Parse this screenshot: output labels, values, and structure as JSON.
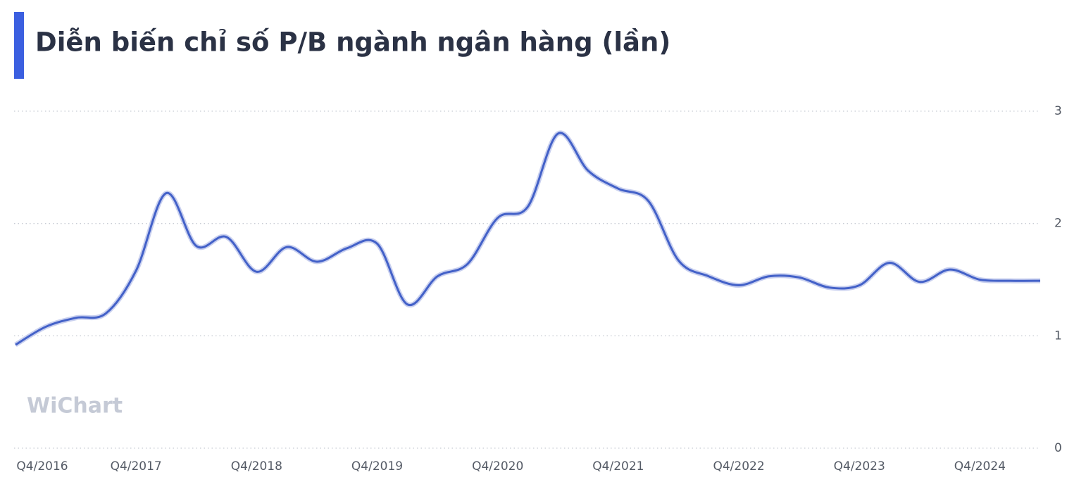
{
  "chart_data": {
    "type": "line",
    "title": "Diễn biến chỉ số P/B ngành ngân hàng (lần)",
    "watermark": "WiChart",
    "categories": [
      "Q4/2016",
      null,
      null,
      null,
      "Q4/2017",
      null,
      null,
      null,
      "Q4/2018",
      null,
      null,
      null,
      "Q4/2019",
      null,
      null,
      null,
      "Q4/2020",
      null,
      null,
      null,
      "Q4/2021",
      null,
      null,
      null,
      "Q4/2022",
      null,
      null,
      null,
      "Q4/2023",
      null,
      null,
      null,
      "Q4/2024",
      null,
      null
    ],
    "series": [
      {
        "name": "P/B",
        "color": "#4361c8",
        "values": [
          0.92,
          1.08,
          1.16,
          1.2,
          1.58,
          2.27,
          1.8,
          1.88,
          1.57,
          1.79,
          1.66,
          1.78,
          1.82,
          1.28,
          1.53,
          1.64,
          2.05,
          2.15,
          2.8,
          2.47,
          2.31,
          2.2,
          1.67,
          1.53,
          1.45,
          1.53,
          1.52,
          1.43,
          1.45,
          1.65,
          1.48,
          1.59,
          1.5,
          1.49,
          1.49
        ]
      }
    ],
    "ylim": [
      0,
      3
    ],
    "yticks": [
      0,
      1,
      2,
      3
    ],
    "grid": true,
    "y_axis_side": "right"
  }
}
